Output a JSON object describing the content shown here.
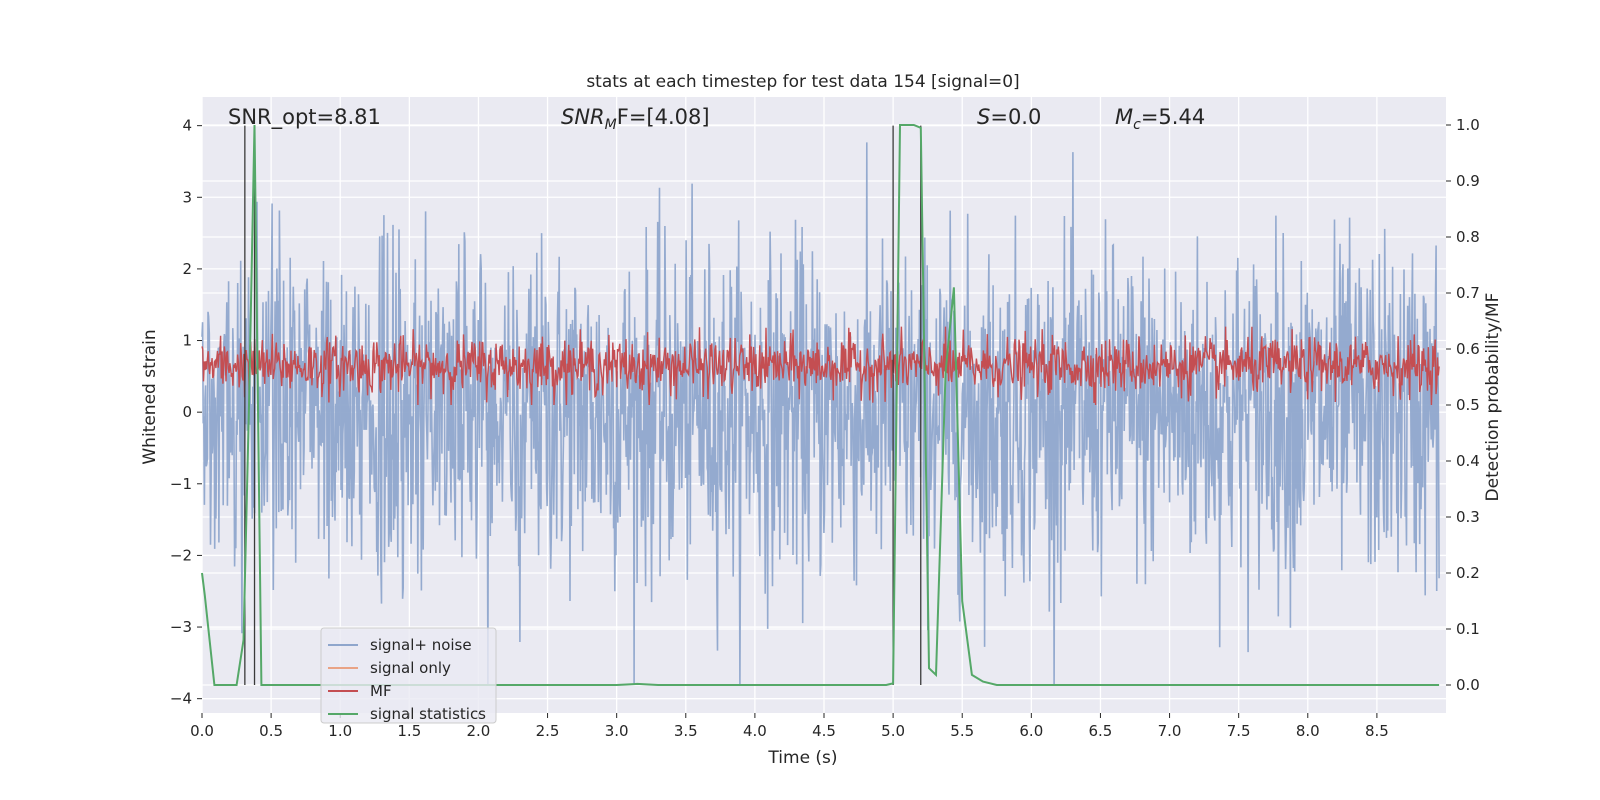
{
  "chart_data": {
    "type": "line",
    "title": "stats at each timestep for test data 154 [signal=0]",
    "xlabel": "Time (s)",
    "ylabel_left": "Whitened strain",
    "ylabel_right": "Detection probability/MF",
    "xlim": [
      0.0,
      9.0
    ],
    "ylim_left": [
      -4.2,
      4.4
    ],
    "ylim_right": [
      -0.05,
      1.05
    ],
    "x_ticks": [
      0.0,
      0.5,
      1.0,
      1.5,
      2.0,
      2.5,
      3.0,
      3.5,
      4.0,
      4.5,
      5.0,
      5.5,
      6.0,
      6.5,
      7.0,
      7.5,
      8.0,
      8.5
    ],
    "x_tick_labels": [
      "0.0",
      "0.5",
      "1.0",
      "1.5",
      "2.0",
      "2.5",
      "3.0",
      "3.5",
      "4.0",
      "4.5",
      "5.0",
      "5.5",
      "6.0",
      "6.5",
      "7.0",
      "7.5",
      "8.0",
      "8.5"
    ],
    "y_left_ticks": [
      4,
      3,
      2,
      1,
      0,
      -1,
      -2,
      -3,
      -4
    ],
    "y_left_tick_labels": [
      "4",
      "3",
      "2",
      "1",
      "0",
      "−1",
      "−2",
      "−3",
      "−4"
    ],
    "y_right_ticks": [
      1.0,
      0.9,
      0.8,
      0.7,
      0.6,
      0.5,
      0.4,
      0.3,
      0.2,
      0.1,
      0.0
    ],
    "y_right_tick_labels": [
      "1.0",
      "0.9",
      "0.8",
      "0.7",
      "0.6",
      "0.5",
      "0.4",
      "0.3",
      "0.2",
      "0.1",
      "0.0"
    ],
    "grid": true,
    "annotations": {
      "snr_opt": "SNR_opt=8.81",
      "snr_mf_base": "SNR",
      "snr_mf_sub": "M",
      "snr_mf_rest": "F=[4.08]",
      "s_label_var": "S",
      "s_label_rest": "=0.0",
      "mc_base": "M",
      "mc_sub": "c",
      "mc_rest": "=5.44"
    },
    "vertical_lines_s": [
      0.31,
      0.38,
      5.0,
      5.2
    ],
    "series": [
      {
        "name": "signal+ noise",
        "color": "#8fa6cc",
        "axis": "left",
        "kind": "noise",
        "n_samples": 2048,
        "amplitude_range": [
          -3.8,
          4.0
        ]
      },
      {
        "name": "signal only",
        "color": "#e9a385",
        "axis": "left",
        "kind": "none"
      },
      {
        "name": "MF",
        "color": "#c44e52",
        "axis": "right",
        "kind": "noise",
        "n_samples": 1600,
        "value_range": [
          0.5,
          0.64
        ]
      },
      {
        "name": "signal statistics",
        "color": "#55a868",
        "axis": "right",
        "kind": "line",
        "x": [
          0.0,
          0.02,
          0.09,
          0.18,
          0.25,
          0.3,
          0.34,
          0.38,
          0.43,
          0.5,
          1.0,
          2.0,
          3.0,
          3.15,
          3.3,
          4.0,
          4.5,
          4.95,
          5.0,
          5.05,
          5.15,
          5.2,
          5.26,
          5.31,
          5.38,
          5.44,
          5.5,
          5.57,
          5.65,
          5.75,
          6.0,
          7.0,
          8.0,
          8.95
        ],
        "y": [
          0.2,
          0.16,
          0.0,
          0.0,
          0.0,
          0.08,
          0.5,
          1.0,
          0.0,
          0.0,
          0.0,
          0.0,
          0.0,
          0.002,
          0.0,
          0.0,
          0.0,
          0.0,
          0.003,
          1.0,
          1.0,
          0.995,
          0.03,
          0.018,
          0.56,
          0.71,
          0.15,
          0.018,
          0.006,
          0.0,
          0.0,
          0.0,
          0.0,
          0.0
        ]
      }
    ],
    "legend": {
      "position": "lower-left",
      "entries": [
        "signal+ noise",
        "signal only",
        "MF",
        "signal statistics"
      ]
    }
  }
}
